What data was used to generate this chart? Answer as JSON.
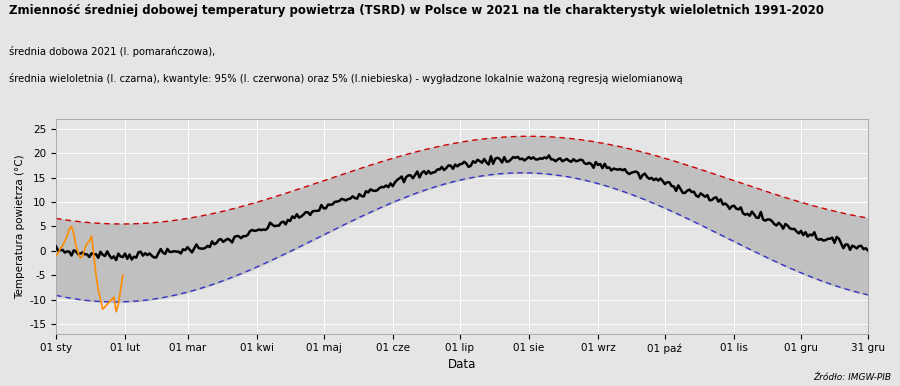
{
  "title": "Zmienność średniej dobowej temperatury powietrza (TSRD) w Polsce w 2021 na tle charakterystyk wieloletnich 1991-2020",
  "subtitle1": "średnia dobowa 2021 (l. pomarańczowa),",
  "subtitle2": "średnia wieloletnia (l. czarna), kwantyle: 95% (l. czerwona) oraz 5% (l.niebieska) - wygładzone lokalnie ważoną regresją wielomianową",
  "ylabel": "Temperatura powietrza (°C)",
  "xlabel": "Data",
  "source": "Źródło: IMGW-PIB",
  "xtick_labels": [
    "01 sty",
    "01 lut",
    "01 mar",
    "01 kwi",
    "01 maj",
    "01 cze",
    "01 lip",
    "01 sie",
    "01 wrz",
    "01 paź",
    "01 lis",
    "01 gru",
    "31 gru"
  ],
  "ytick_labels": [
    -15,
    -10,
    -5,
    0,
    5,
    10,
    15,
    20,
    25
  ],
  "ylim": [
    -17,
    27
  ],
  "background_color": "#e5e5e5",
  "plot_bg_color": "#e5e5e5",
  "mean_color": "#000000",
  "q95_color": "#cc0000",
  "q05_color": "#3333cc",
  "daily2021_color": "#ff8c00",
  "fill_color": "#c0c0c0",
  "grid_color": "#ffffff"
}
